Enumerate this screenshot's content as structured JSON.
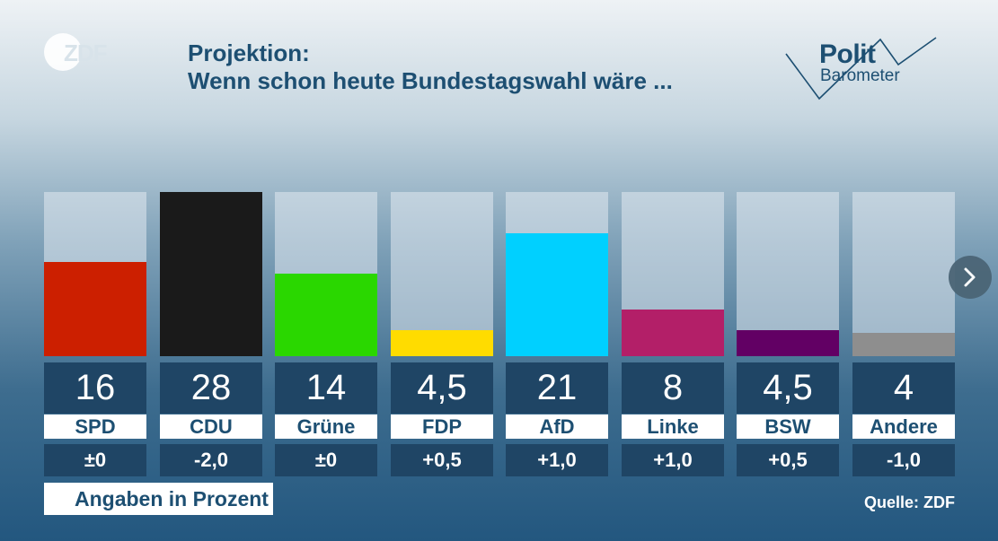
{
  "logo": {
    "text": "ZDF"
  },
  "header": {
    "title_line1": "Projektion:",
    "title_line2": "Wenn schon heute Bundestagswahl wäre ..."
  },
  "brand": {
    "word": "Polit",
    "sub": "Barometer"
  },
  "chart_data": {
    "type": "bar",
    "categories": [
      "SPD",
      "CDU",
      "Grüne",
      "FDP",
      "AfD",
      "Linke",
      "BSW",
      "Andere"
    ],
    "values": [
      16,
      28,
      14,
      4.5,
      21,
      8,
      4.5,
      4
    ],
    "value_labels": [
      "16",
      "28",
      "14",
      "4,5",
      "21",
      "8",
      "4,5",
      "4"
    ],
    "changes": [
      "±0",
      "-2,0",
      "±0",
      "+0,5",
      "+1,0",
      "+1,0",
      "+0,5",
      "-1,0"
    ],
    "colors": [
      "#cc1f00",
      "#1a1a1a",
      "#2ad700",
      "#ffdc00",
      "#00d0ff",
      "#b31f68",
      "#620064",
      "#8e8e8e"
    ],
    "ylim": [
      0,
      28
    ],
    "unit_note": "Angaben in Prozent",
    "source": "Quelle: ZDF"
  },
  "nav": {
    "next_icon": "chevron-right-icon"
  }
}
